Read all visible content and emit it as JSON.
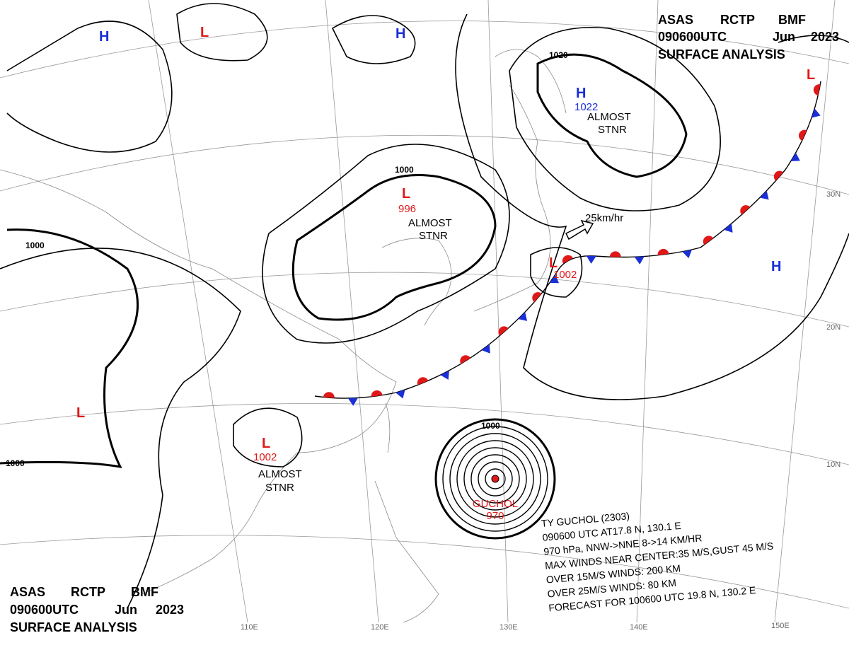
{
  "header": {
    "agency": "ASAS",
    "station": "RCTP",
    "office": "BMF",
    "time": "090600UTC",
    "month": "Jun",
    "year": "2023",
    "product": "SURFACE ANALYSIS"
  },
  "centers": [
    {
      "symbol": "H"
    },
    {
      "symbol": "L"
    },
    {
      "symbol": "H"
    },
    {
      "symbol": "H",
      "pressure": "1022",
      "note": [
        "ALMOST",
        "STNR"
      ]
    },
    {
      "symbol": "L",
      "pressure": "996",
      "note": [
        "ALMOST",
        "STNR"
      ]
    },
    {
      "symbol": "L",
      "pressure": "1002"
    },
    {
      "symbol": "H"
    },
    {
      "symbol": "L"
    },
    {
      "symbol": "L"
    },
    {
      "symbol": "L",
      "pressure": "1002",
      "note": [
        "ALMOST",
        "STNR"
      ]
    }
  ],
  "isobar_labels": [
    "1000",
    "1000",
    "1000",
    "1020",
    "1000"
  ],
  "motion": "25km/hr",
  "typhoon": {
    "name": "GUCHOL",
    "pressure": "970",
    "lines": [
      "TY GUCHOL (2303)",
      "090600 UTC AT17.8 N, 130.1 E",
      "970 hPa, NNW->NNE 8->14 KM/HR",
      "MAX WINDS NEAR CENTER:35 M/S,GUST 45 M/S",
      "OVER 15M/S WINDS: 200 KM",
      "OVER 25M/S WINDS: 80 KM",
      "FORECAST FOR 100600 UTC 19.8 N, 130.2 E"
    ]
  },
  "latitudes": [
    "30N",
    "20N",
    "10N"
  ],
  "longitudes": [
    "110E",
    "120E",
    "130E",
    "140E",
    "150E"
  ]
}
